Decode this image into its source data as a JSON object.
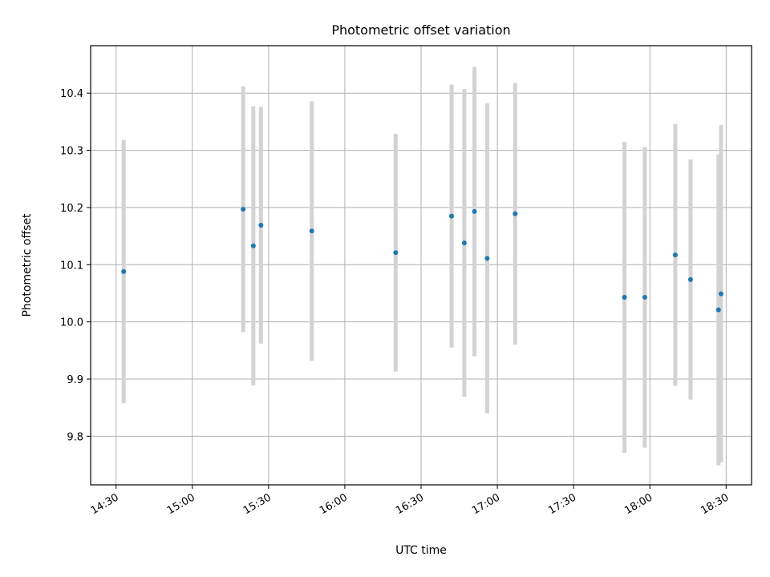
{
  "chart_data": {
    "type": "scatter",
    "title": "Photometric offset variation",
    "xlabel": "UTC time",
    "ylabel": "Photometric offset",
    "x_ticks": [
      "14:30",
      "15:00",
      "15:30",
      "16:00",
      "16:30",
      "17:00",
      "17:30",
      "18:00",
      "18:30"
    ],
    "y_ticks": [
      "9.8",
      "9.9",
      "10.0",
      "10.1",
      "10.2",
      "10.3",
      "10.4"
    ],
    "xlim": [
      "14:20",
      "18:40"
    ],
    "ylim": [
      9.715,
      10.483
    ],
    "grid": true,
    "marker_color": "#1f77b4",
    "errorbar_color": "#d3d3d3",
    "points": [
      {
        "x": "14:33",
        "y": 10.088,
        "low": 9.858,
        "high": 10.318
      },
      {
        "x": "15:20",
        "y": 10.197,
        "low": 9.982,
        "high": 10.412
      },
      {
        "x": "15:24",
        "y": 10.133,
        "low": 9.889,
        "high": 10.377
      },
      {
        "x": "15:27",
        "y": 10.169,
        "low": 9.962,
        "high": 10.376
      },
      {
        "x": "15:47",
        "y": 10.159,
        "low": 9.932,
        "high": 10.386
      },
      {
        "x": "16:20",
        "y": 10.121,
        "low": 9.913,
        "high": 10.329
      },
      {
        "x": "16:42",
        "y": 10.185,
        "low": 9.955,
        "high": 10.415
      },
      {
        "x": "16:47",
        "y": 10.138,
        "low": 9.869,
        "high": 10.407
      },
      {
        "x": "16:51",
        "y": 10.193,
        "low": 9.94,
        "high": 10.446
      },
      {
        "x": "16:56",
        "y": 10.111,
        "low": 9.84,
        "high": 10.382
      },
      {
        "x": "17:07",
        "y": 10.189,
        "low": 9.96,
        "high": 10.418
      },
      {
        "x": "17:50",
        "y": 10.043,
        "low": 9.771,
        "high": 10.315
      },
      {
        "x": "17:58",
        "y": 10.043,
        "low": 9.78,
        "high": 10.306
      },
      {
        "x": "18:10",
        "y": 10.117,
        "low": 9.888,
        "high": 10.346
      },
      {
        "x": "18:16",
        "y": 10.074,
        "low": 9.864,
        "high": 10.284
      },
      {
        "x": "18:27",
        "y": 10.021,
        "low": 9.749,
        "high": 10.293
      },
      {
        "x": "18:28",
        "y": 10.049,
        "low": 9.754,
        "high": 10.344
      }
    ]
  }
}
